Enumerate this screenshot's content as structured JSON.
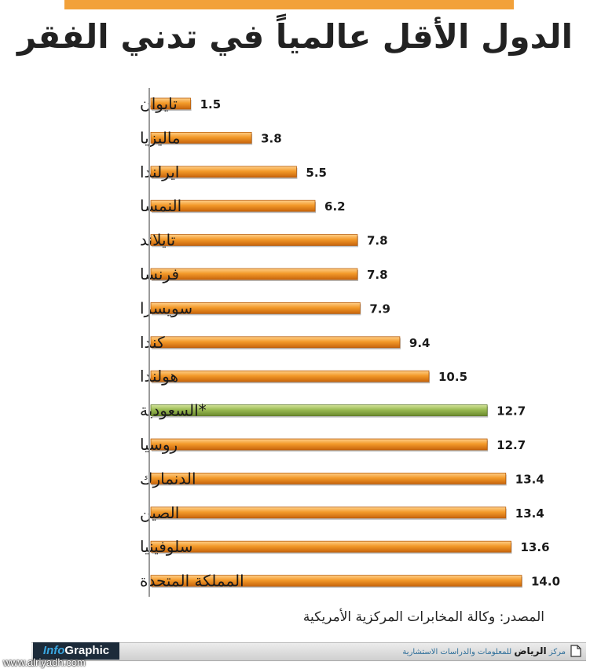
{
  "header": {
    "title": "الدول الأقل عالمياً في تدني الفقر"
  },
  "chart_data": {
    "type": "bar",
    "orientation": "horizontal",
    "categories": [
      "تايوان",
      "ماليزيا",
      "ايرلندا",
      "النمسا",
      "تايلاند",
      "فرنسا",
      "سويسرا",
      "كندا",
      "هولندا",
      "*السعودية",
      "روسيا",
      "الدنمارك",
      "الصين",
      "سلوفينيا",
      "المملكة المتحدة"
    ],
    "values": [
      1.5,
      3.8,
      5.5,
      6.2,
      7.8,
      7.8,
      7.9,
      9.4,
      10.5,
      12.7,
      12.7,
      13.4,
      13.4,
      13.6,
      14.0
    ],
    "value_labels": [
      "1.5",
      "3.8",
      "5.5",
      "6.2",
      "7.8",
      "7.8",
      "7.9",
      "9.4",
      "10.5",
      "12.7",
      "12.7",
      "13.4",
      "13.4",
      "13.6",
      "14.0"
    ],
    "highlight": "*السعودية",
    "colors": {
      "bar": "#f39a2a",
      "highlight": "#8fae4b",
      "axis": "#9a9a9a"
    },
    "xlim": [
      0,
      14.0
    ]
  },
  "source": "المصدر: وكالة المخابرات المركزية الأمريكية",
  "footer": {
    "logo_info": "Info",
    "logo_graphic": "Graphic",
    "watermark": "www.alriyadh.com",
    "center_prefix": "مركز",
    "center_brand": "الرياض",
    "center_suffix": "للمعلومات والدراسات الاستشارية",
    "icon": "document-icon"
  }
}
